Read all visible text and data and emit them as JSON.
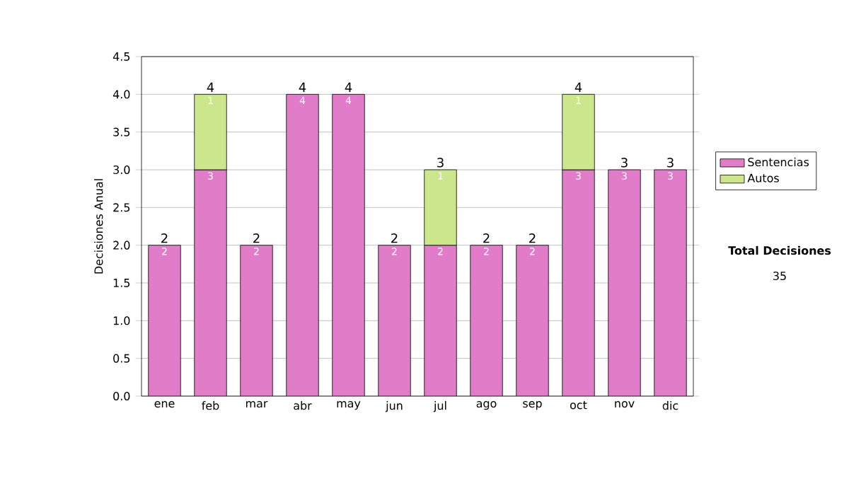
{
  "chart_data": {
    "type": "bar",
    "stacked": true,
    "ylabel": "Decisiones Anual",
    "categories": [
      "ene",
      "feb",
      "mar",
      "abr",
      "may",
      "jun",
      "jul",
      "ago",
      "sep",
      "oct",
      "nov",
      "dic"
    ],
    "series": [
      {
        "name": "Sentencias",
        "color": "#e07cc8",
        "values": [
          2,
          3,
          2,
          4,
          4,
          2,
          2,
          2,
          2,
          3,
          3,
          3
        ]
      },
      {
        "name": "Autos",
        "color": "#cce68c",
        "values": [
          null,
          1,
          null,
          null,
          null,
          null,
          1,
          null,
          null,
          1,
          null,
          null
        ]
      }
    ],
    "totals": [
      "2",
      "4",
      "2",
      "4",
      "4",
      "2",
      "3",
      "2",
      "2",
      "4",
      "3",
      "3"
    ],
    "data_labels": true,
    "ylim": [
      0,
      4.5
    ],
    "yticks": [
      {
        "value": 0,
        "label": "0.0"
      },
      {
        "value": 0.5,
        "label": "0.5"
      },
      {
        "value": 1,
        "label": "1.0"
      },
      {
        "value": 1.5,
        "label": "1.5"
      },
      {
        "value": 2,
        "label": "2.0"
      },
      {
        "value": 2.5,
        "label": "2.5"
      },
      {
        "value": 3,
        "label": "3.0"
      },
      {
        "value": 3.5,
        "label": "3.5"
      },
      {
        "value": 4,
        "label": "4.0"
      },
      {
        "value": 4.5,
        "label": "4.5"
      }
    ],
    "grid": "y",
    "legend": "right",
    "annotations": [
      "Total Decisiones",
      "35"
    ]
  }
}
